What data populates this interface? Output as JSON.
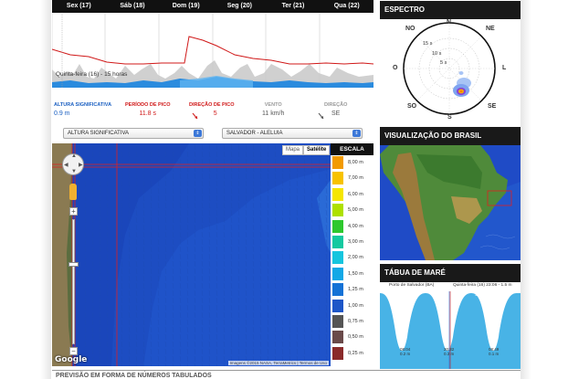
{
  "forecast": {
    "days": [
      "Sex (17)",
      "Sáb (18)",
      "Dom (19)",
      "Seg (20)",
      "Ter (21)",
      "Qua (22)"
    ],
    "tooltip": "Quinta-feira (16) - 15 horas",
    "legend": {
      "altura": {
        "label": "ALTURA SIGNIFICATIVA",
        "value": "0.9 m",
        "color": "#1a5fc1"
      },
      "periodo": {
        "label": "PERÍODO DE PICO",
        "value": "11.8 s",
        "color": "#d01818"
      },
      "direcao": {
        "label": "DIREÇÃO DE PICO",
        "value": "5",
        "color": "#d01818"
      },
      "vento": {
        "label": "VENTO",
        "value": "11 km/h",
        "color": "#999999"
      },
      "direcao_vento": {
        "label": "DIREÇÃO",
        "value": "SE",
        "color": "#999999"
      }
    }
  },
  "spectrum": {
    "title": "ESPECTRO",
    "directions": {
      "n": "N",
      "ne": "NE",
      "l": "L",
      "se": "SE",
      "s": "S",
      "so": "SO",
      "o": "O",
      "no": "NO"
    },
    "rings": [
      "15 s",
      "10 s",
      "5 s"
    ]
  },
  "selectors": {
    "variable": "ALTURA SIGNIFICATIVA",
    "location": "SALVADOR - ALELUIA"
  },
  "map": {
    "type_buttons": {
      "map": "Mapa",
      "satellite": "Satélite"
    },
    "google": "Google",
    "attribution": "Imagens ©2015 NASA, TerraMetrics  |  Termos de Uso"
  },
  "scale": {
    "title": "ESCALA",
    "items": [
      {
        "label": "8,00 m",
        "color": "#f29a00"
      },
      {
        "label": "7,00 m",
        "color": "#f7c200"
      },
      {
        "label": "6,00 m",
        "color": "#f5e600"
      },
      {
        "label": "5,00 m",
        "color": "#aee000"
      },
      {
        "label": "4,00 m",
        "color": "#2ec82e"
      },
      {
        "label": "3,00 m",
        "color": "#13c9a0"
      },
      {
        "label": "2,00 m",
        "color": "#15c5de"
      },
      {
        "label": "1,50 m",
        "color": "#12a8e6"
      },
      {
        "label": "1,25 m",
        "color": "#1472d6"
      },
      {
        "label": "1,00 m",
        "color": "#1d56c8"
      },
      {
        "label": "0,75 m",
        "color": "#555555"
      },
      {
        "label": "0,50 m",
        "color": "#6a4a4a"
      },
      {
        "label": "0,25 m",
        "color": "#8a2a2a"
      }
    ]
  },
  "brasil": {
    "title": "VISUALIZAÇÃO DO BRASIL"
  },
  "tide": {
    "title": "TÁBUA DE MARÉ",
    "place": "Porto de Salvador (BA)",
    "current": "Quinta-feira (16) 23:06 - 1.5 m",
    "day1": "Quinta-feira",
    "day2": "Sexta-feira",
    "low1_time": "08:04",
    "low1_height": "0.2 m",
    "low2_time": "20:32",
    "low2_height": "0.3 m",
    "low3_time": "08:49",
    "low3_height": "0.1 m"
  },
  "bottom": {
    "title": "PREVISÃO EM FORMA DE NÚMEROS TABULADOS"
  }
}
